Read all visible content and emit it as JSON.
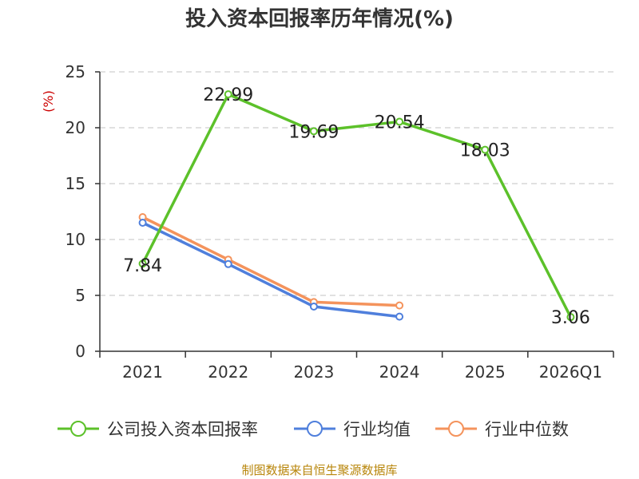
{
  "chart_data": {
    "type": "line",
    "title": "投入资本回报率历年情况(%)",
    "ylabel": "(%)",
    "xlabel": "",
    "categories": [
      "2021",
      "2022",
      "2023",
      "2024",
      "2025",
      "2026Q1"
    ],
    "ylim": [
      0,
      25
    ],
    "yticks": [
      0,
      5,
      10,
      15,
      20,
      25
    ],
    "grid": true,
    "legend_position": "bottom",
    "series": [
      {
        "name": "公司投入资本回报率",
        "color": "#5cc12a",
        "values": [
          7.84,
          22.99,
          19.69,
          20.54,
          18.03,
          3.06
        ],
        "labels": [
          "7.84",
          "22.99",
          "19.69",
          "20.54",
          "18.03",
          "3.06"
        ],
        "show_labels": true
      },
      {
        "name": "行业均值",
        "color": "#4f7fdc",
        "values": [
          11.5,
          7.8,
          4.0,
          3.1,
          null,
          null
        ],
        "show_labels": false
      },
      {
        "name": "行业中位数",
        "color": "#f4935c",
        "values": [
          12.0,
          8.2,
          4.4,
          4.1,
          null,
          null
        ],
        "show_labels": false
      }
    ]
  },
  "source": "制图数据来自恒生聚源数据库"
}
